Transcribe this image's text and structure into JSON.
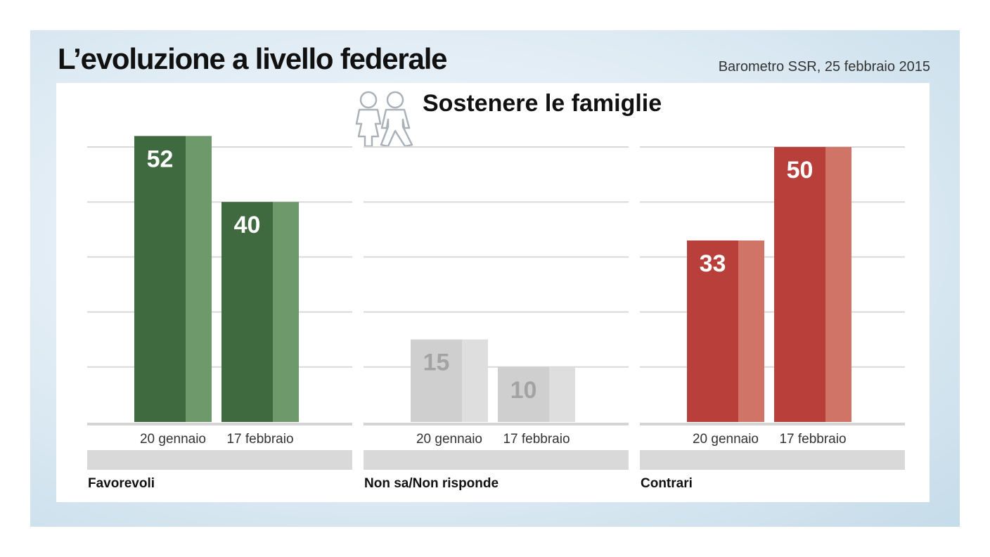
{
  "header": {
    "title": "L’evoluzione a livello federale",
    "source": "Barometro SSR, 25 febbraio 2015",
    "subtitle": "Sostenere le famiglie"
  },
  "chart_data": {
    "type": "bar",
    "categories": [
      "20 gennaio",
      "17 febbraio"
    ],
    "groups": [
      {
        "name": "Favorevoli",
        "values": [
          52,
          40
        ],
        "colors": {
          "dark": "#3f6a3f",
          "light": "#6e9a6b",
          "label": "#ffffff"
        }
      },
      {
        "name": "Non sa/Non risponde",
        "values": [
          15,
          10
        ],
        "colors": {
          "dark": "#cfcfcf",
          "light": "#dedede",
          "label": "#a3a3a3"
        }
      },
      {
        "name": "Contrari",
        "values": [
          33,
          50
        ],
        "colors": {
          "dark": "#b83f3a",
          "light": "#d07468",
          "label": "#ffffff"
        }
      }
    ],
    "ylim": [
      0,
      50
    ],
    "grid": true,
    "legend": "none"
  }
}
